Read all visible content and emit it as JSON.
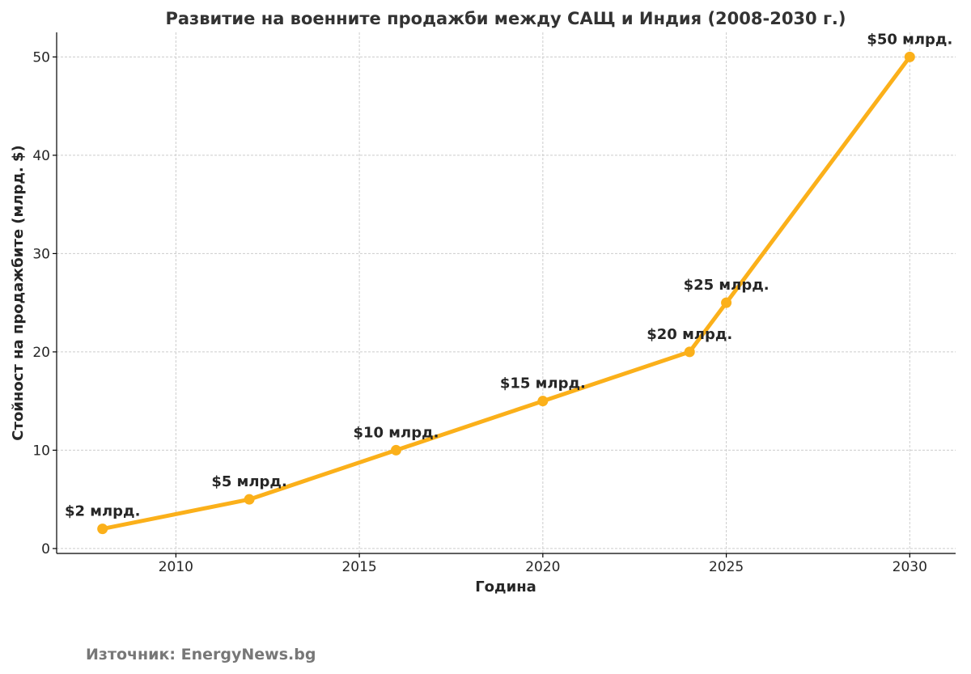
{
  "chart_data": {
    "type": "line",
    "title": "Развитие на военните продажби между САЩ и Индия (2008-2030 г.)",
    "xlabel": "Година",
    "ylabel": "Стойност на продажбите (млрд. $)",
    "xlim": [
      2006.75,
      2031.25
    ],
    "ylim": [
      -0.5,
      52.5
    ],
    "x_ticks": [
      2010,
      2015,
      2020,
      2025,
      2030
    ],
    "y_ticks": [
      0,
      10,
      20,
      30,
      40,
      50
    ],
    "grid": true,
    "line_color": "#FBB01A",
    "x": [
      2008,
      2012,
      2016,
      2020,
      2024,
      2025,
      2030
    ],
    "y": [
      2,
      5,
      10,
      15,
      20,
      25,
      50
    ],
    "data_labels": [
      "$2 млрд.",
      "$5 млрд.",
      "$10 млрд.",
      "$15 млрд.",
      "$20 млрд.",
      "$25 млрд.",
      "$50 млрд."
    ]
  },
  "source": "Източник: EnergyNews.bg"
}
